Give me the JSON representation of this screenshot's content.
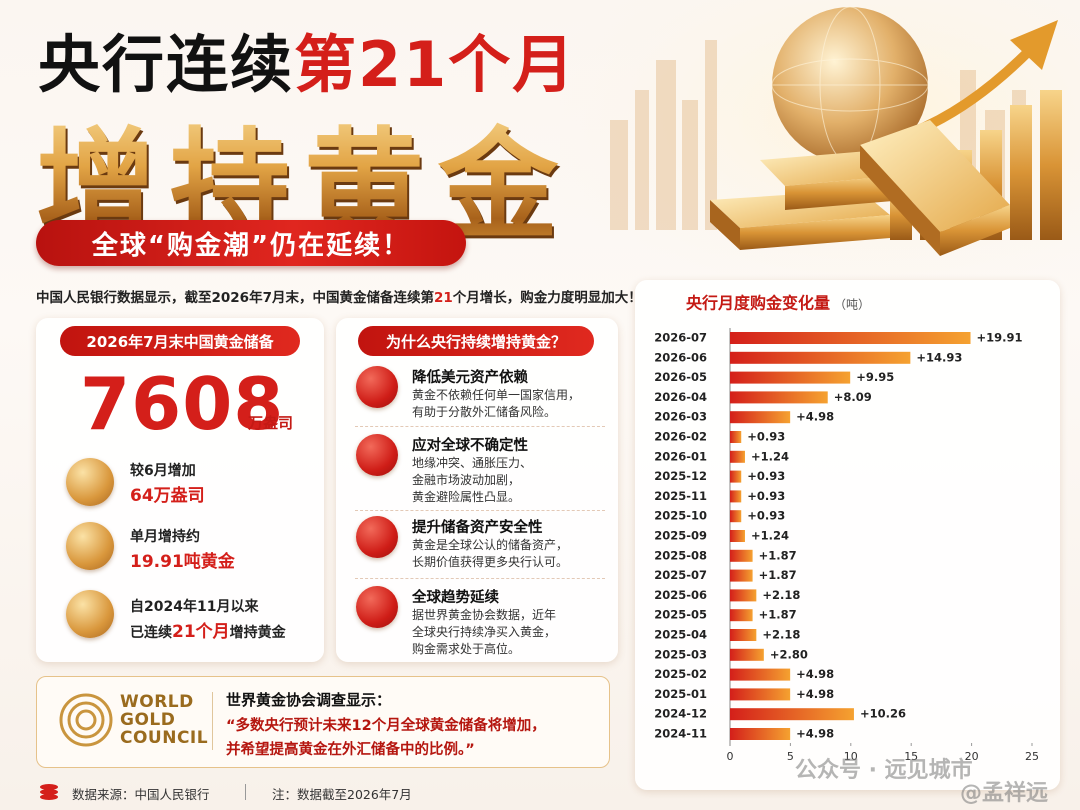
{
  "header": {
    "title_black": "央行连续",
    "title_red": "第21个月",
    "subtitle": "增持黄金",
    "banner": "全球“购金潮”仍在延续！"
  },
  "intro": [
    "中国人民银行数据显示，截至2026年7月末，中国黄金储备连续第",
    "21",
    "个月增长，购金力度明显加大！"
  ],
  "reserve_card": {
    "label": "2026年7月末中国黄金储备",
    "value": 7608,
    "unit": "万盎司",
    "items": [
      {
        "line1": "较6月增加",
        "line2": [
          "64万盎司"
        ]
      },
      {
        "line1": "单月增持约",
        "line2": [
          "19.91吨黄金"
        ]
      },
      {
        "line1": "自2024年11月以来",
        "line2": [
          "已连续",
          "21个月",
          "增持黄金"
        ]
      }
    ]
  },
  "reasons": {
    "title": "为什么央行持续增持黄金？",
    "items": [
      {
        "title": "降低美元资产依赖",
        "lines": [
          "黄金不依赖任何单一国家信用，",
          "有助于分散外汇储备风险。"
        ]
      },
      {
        "title": "应对全球不确定性",
        "lines": [
          "地缘冲突、通胀压力、",
          "金融市场波动加剧，",
          "黄金避险属性凸显。"
        ]
      },
      {
        "title": "提升储备资产安全性",
        "lines": [
          "黄金是全球公认的储备资产，",
          "长期价值获得更多央行认可。"
        ]
      },
      {
        "title": "全球趋势延续",
        "lines": [
          "据世界黄金协会数据，近年",
          "全球央行持续净买入黄金，",
          "购金需求处于高位。"
        ]
      }
    ]
  },
  "quote": {
    "logo": [
      "WORLD",
      "GOLD",
      "COUNCIL"
    ],
    "title": "世界黄金协会调查显示：",
    "lines": [
      "“多数央行预计未来12个月全球黄金储备将增加，",
      "并希望提高黄金在外汇储备中的比例。”"
    ]
  },
  "footer": {
    "source": "数据来源：中国人民银行",
    "note": "注：数据截至2026年7月"
  },
  "watermark": [
    "公众号 · 远见城市",
    "@孟祥远"
  ],
  "chart_data": {
    "type": "bar",
    "orientation": "horizontal",
    "title": "央行月度购金变化量",
    "unit": "（吨）",
    "categories": [
      "2026-07",
      "2026-06",
      "2026-05",
      "2026-04",
      "2026-03",
      "2026-02",
      "2026-01",
      "2025-12",
      "2025-11",
      "2025-10",
      "2025-09",
      "2025-08",
      "2025-07",
      "2025-06",
      "2025-05",
      "2025-04",
      "2025-03",
      "2025-02",
      "2025-01",
      "2024-12",
      "2024-11"
    ],
    "values": [
      19.91,
      14.93,
      9.95,
      8.09,
      4.98,
      0.93,
      1.24,
      0.93,
      0.93,
      0.93,
      1.24,
      1.87,
      1.87,
      2.18,
      1.87,
      2.18,
      2.8,
      4.98,
      4.98,
      10.26,
      4.98
    ],
    "value_labels": [
      "+19.91",
      "+14.93",
      "+9.95",
      "+8.09",
      "+4.98",
      "+0.93",
      "+1.24",
      "+0.93",
      "+0.93",
      "+0.93",
      "+1.24",
      "+1.87",
      "+1.87",
      "+2.18",
      "+1.87",
      "+2.18",
      "+2.80",
      "+4.98",
      "+4.98",
      "+10.26",
      "+4.98"
    ],
    "color": "#d41f1a",
    "xlim": [
      0,
      25
    ],
    "xticks": [
      0,
      5,
      10,
      15,
      20,
      25
    ],
    "grid": false
  }
}
